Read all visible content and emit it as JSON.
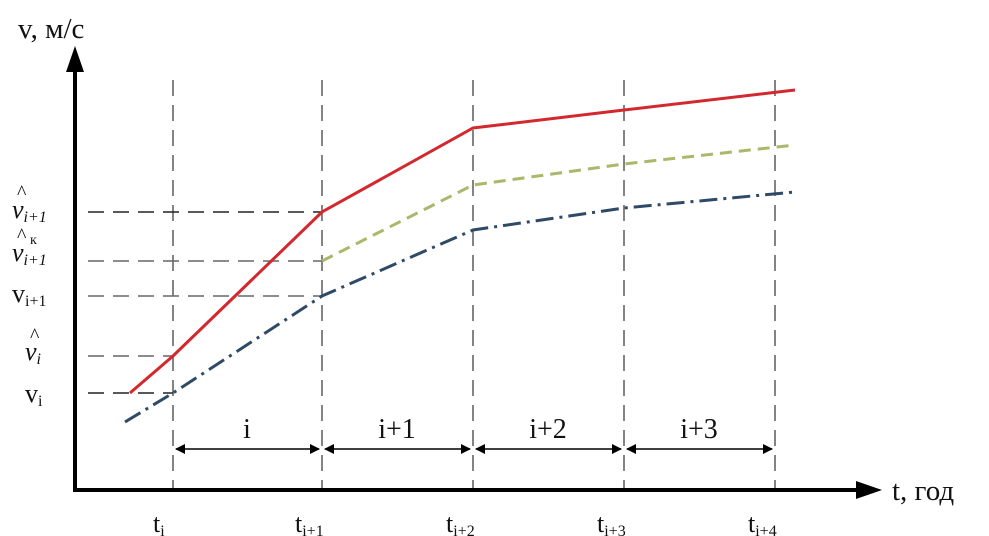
{
  "axes": {
    "y_label": "v, м/с",
    "x_label": "t, год"
  },
  "x_ticks": [
    {
      "base": "t",
      "sub": "i"
    },
    {
      "base": "t",
      "sub": "i+1"
    },
    {
      "base": "t",
      "sub": "i+2"
    },
    {
      "base": "t",
      "sub": "i+3"
    },
    {
      "base": "t",
      "sub": "i+4"
    }
  ],
  "y_labels": [
    {
      "base": "v",
      "sup": "^",
      "sup2": "",
      "sub": "i+1",
      "italic": true
    },
    {
      "base": "v",
      "sup": "^",
      "sup2": "к",
      "sub": "i+1",
      "italic": true
    },
    {
      "base": "v",
      "sup": "",
      "sup2": "",
      "sub": "i+1",
      "italic": false
    },
    {
      "base": "v",
      "sup": "^",
      "sup2": "",
      "sub": "i",
      "italic": true
    },
    {
      "base": "v",
      "sup": "",
      "sup2": "",
      "sub": "i",
      "italic": false
    }
  ],
  "intervals": [
    "i",
    "i+1",
    "i+2",
    "i+3"
  ],
  "colors": {
    "red_solid": "#d2282e",
    "green_dashed": "#a9b86a",
    "blue_dashdot": "#2f4a66",
    "axis": "#000000",
    "guides": "#666666"
  }
}
